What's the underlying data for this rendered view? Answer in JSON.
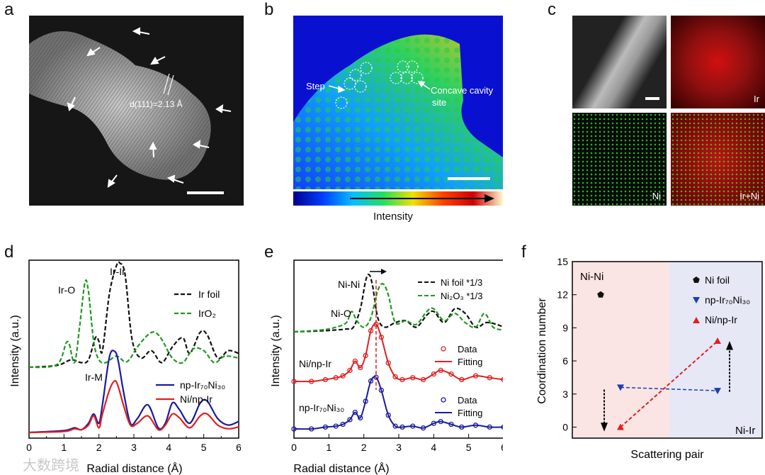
{
  "panel_letters": {
    "a": "a",
    "b": "b",
    "c": "c",
    "d": "d",
    "e": "e",
    "f": "f"
  },
  "panel_a": {
    "d_label": "d(111)=2.13 Å"
  },
  "panel_b": {
    "step_label": "Step",
    "cavity_label_1": "Concave cavity",
    "cavity_label_2": "site",
    "colorbar_label": "Intensity"
  },
  "panel_c": {
    "maps": [
      "",
      "Ir",
      "Ni",
      "Ir+Ni"
    ]
  },
  "watermark": {
    "text": "大数跨境"
  },
  "chart_data": [
    {
      "type": "line",
      "panel": "d",
      "xlabel": "Radial distance (Å)",
      "ylabel": "Intensity (a.u.)",
      "xlim": [
        0,
        6
      ],
      "xticks": [
        "0",
        "1",
        "2",
        "3",
        "4",
        "5",
        "6"
      ],
      "annotations": [
        "Ir-Ir",
        "Ir-O",
        "Ir-M"
      ],
      "legend_top": [
        "Ir foil",
        "IrO₂"
      ],
      "legend_bottom": [
        "np-Ir₇₀Ni₃₀",
        "Ni/np-Ir"
      ],
      "series": [
        {
          "name": "Ir foil",
          "style": "dashed",
          "color": "#111111",
          "x": [
            0,
            0.8,
            1.2,
            1.5,
            1.7,
            1.9,
            2.0,
            2.1,
            2.3,
            2.5,
            2.6,
            2.75,
            2.95,
            3.2,
            3.5,
            3.8,
            4.1,
            4.4,
            4.6,
            4.9,
            5.1,
            5.4,
            5.7,
            6
          ],
          "y": [
            0.0,
            0.02,
            0.08,
            0.05,
            0.08,
            0.32,
            0.28,
            0.18,
            0.8,
            1.1,
            1.13,
            1.0,
            0.3,
            0.1,
            0.18,
            0.05,
            0.22,
            0.32,
            0.15,
            0.38,
            0.35,
            0.1,
            0.18,
            0.15
          ]
        },
        {
          "name": "IrO₂",
          "style": "dashed",
          "color": "#1f9a1f",
          "x": [
            0,
            0.8,
            1.1,
            1.3,
            1.45,
            1.6,
            1.7,
            1.85,
            2.0,
            2.2,
            2.5,
            2.8,
            3.1,
            3.4,
            3.6,
            3.8,
            4.1,
            4.4,
            4.7,
            5.0,
            5.3,
            5.6,
            6
          ],
          "y": [
            0.0,
            0.03,
            0.28,
            0.05,
            0.45,
            0.92,
            0.82,
            0.28,
            0.08,
            0.05,
            0.12,
            0.06,
            0.22,
            0.35,
            0.38,
            0.3,
            0.1,
            0.05,
            0.2,
            0.18,
            0.05,
            0.12,
            0.1
          ]
        },
        {
          "name": "np-Ir70Ni30",
          "style": "solid",
          "color": "#1a1aa0",
          "x": [
            0,
            1.0,
            1.3,
            1.5,
            1.7,
            1.85,
            2.0,
            2.1,
            2.3,
            2.45,
            2.55,
            2.7,
            2.9,
            3.1,
            3.4,
            3.7,
            3.9,
            4.1,
            4.3,
            4.6,
            4.9,
            5.1,
            5.4,
            5.7,
            6
          ],
          "y": [
            0.0,
            0.02,
            0.05,
            0.03,
            0.1,
            0.2,
            0.1,
            0.3,
            0.82,
            0.88,
            0.78,
            0.45,
            0.1,
            0.15,
            0.3,
            0.05,
            0.1,
            0.32,
            0.25,
            0.1,
            0.32,
            0.34,
            0.15,
            0.08,
            0.12
          ]
        },
        {
          "name": "Ni/np-Ir",
          "style": "solid",
          "color": "#e02020",
          "x": [
            0,
            1.0,
            1.3,
            1.5,
            1.7,
            1.85,
            2.0,
            2.1,
            2.3,
            2.45,
            2.55,
            2.7,
            2.9,
            3.1,
            3.4,
            3.7,
            3.9,
            4.1,
            4.3,
            4.6,
            4.9,
            5.1,
            5.4,
            5.7,
            6
          ],
          "y": [
            0.0,
            0.01,
            0.04,
            0.03,
            0.08,
            0.18,
            0.05,
            0.2,
            0.46,
            0.56,
            0.5,
            0.3,
            0.08,
            0.1,
            0.18,
            0.03,
            0.08,
            0.2,
            0.16,
            0.05,
            0.18,
            0.2,
            0.08,
            0.04,
            0.06
          ]
        }
      ]
    },
    {
      "type": "line",
      "panel": "e",
      "xlabel": "Radial distance (Å)",
      "ylabel": "Intensity (a.u.)",
      "xlim": [
        0,
        6
      ],
      "xticks": [
        "0",
        "1",
        "2",
        "3",
        "4",
        "5",
        "6"
      ],
      "annotations": [
        "Ni-Ni",
        "Ni-O"
      ],
      "legend_top": [
        "Ni foil *1/3",
        "Ni₂O₃ *1/3"
      ],
      "legend_mid": [
        "Data",
        "Fitting"
      ],
      "legend_bot": [
        "Data",
        "Fitting"
      ],
      "labels": [
        "Ni/np-Ir",
        "np-Ir₇₀Ni₃₀"
      ],
      "series": [
        {
          "name": "Ni foil *1/3",
          "style": "dashed",
          "color": "#111111",
          "x": [
            0,
            0.8,
            1.2,
            1.5,
            1.7,
            1.9,
            2.05,
            2.15,
            2.25,
            2.4,
            2.6,
            2.9,
            3.2,
            3.5,
            3.8,
            4.0,
            4.3,
            4.6,
            4.9,
            5.2,
            5.5,
            5.8,
            6
          ],
          "y": [
            0.0,
            0.01,
            0.02,
            0.03,
            0.05,
            0.25,
            0.55,
            0.62,
            0.5,
            0.15,
            0.05,
            0.1,
            0.12,
            0.05,
            0.18,
            0.22,
            0.1,
            0.25,
            0.2,
            0.05,
            0.1,
            0.08,
            0.05
          ]
        },
        {
          "name": "Ni2O3 *1/3",
          "style": "dashed",
          "color": "#1f9a1f",
          "x": [
            0,
            0.8,
            1.2,
            1.5,
            1.65,
            1.8,
            2.0,
            2.2,
            2.4,
            2.55,
            2.7,
            2.9,
            3.2,
            3.5,
            3.8,
            4.0,
            4.3,
            4.6,
            4.9,
            5.2,
            5.45,
            5.7,
            6
          ],
          "y": [
            0.0,
            0.02,
            0.05,
            0.1,
            0.22,
            0.12,
            0.05,
            0.15,
            0.45,
            0.52,
            0.4,
            0.1,
            0.12,
            0.08,
            0.22,
            0.25,
            0.12,
            0.2,
            0.1,
            0.05,
            0.2,
            0.05,
            0.02
          ]
        },
        {
          "name": "Ni/np-Ir Data",
          "style": "circles",
          "color": "#e02020",
          "x": [
            0,
            0.5,
            0.9,
            1.2,
            1.4,
            1.6,
            1.75,
            1.9,
            2.05,
            2.2,
            2.35,
            2.5,
            2.7,
            2.9,
            3.1,
            3.4,
            3.7,
            4.0,
            4.2,
            4.5,
            4.8,
            5.2,
            5.6,
            6
          ],
          "y": [
            0.0,
            0.0,
            0.02,
            0.04,
            0.06,
            0.12,
            0.22,
            0.15,
            0.28,
            0.55,
            0.62,
            0.48,
            0.2,
            0.05,
            0.02,
            0.04,
            0.02,
            0.08,
            0.12,
            0.08,
            0.02,
            0.06,
            0.04,
            0.02
          ]
        },
        {
          "name": "np-Ir70Ni30 Data",
          "style": "circles",
          "color": "#1a1aa0",
          "x": [
            0,
            0.5,
            0.9,
            1.2,
            1.4,
            1.6,
            1.75,
            1.9,
            2.05,
            2.2,
            2.35,
            2.5,
            2.7,
            2.9,
            3.1,
            3.4,
            3.7,
            4.0,
            4.2,
            4.5,
            4.8,
            5.2,
            5.6,
            6
          ],
          "y": [
            0.0,
            0.0,
            0.02,
            0.03,
            0.05,
            0.1,
            0.18,
            0.12,
            0.3,
            0.52,
            0.56,
            0.42,
            0.15,
            0.03,
            0.02,
            0.03,
            0.01,
            0.06,
            0.08,
            0.05,
            0.02,
            0.04,
            0.02,
            0.02
          ]
        }
      ]
    },
    {
      "type": "scatter",
      "panel": "f",
      "xlabel": "Scattering pair",
      "ylabel": "Coordination number",
      "ylim": [
        -1,
        15
      ],
      "yticks": [
        "0",
        "3",
        "6",
        "9",
        "12",
        "15"
      ],
      "region_left": "Ni-Ni",
      "region_right": "Ni-Ir",
      "legend": [
        "Ni foil",
        "np-Ir₇₀Ni₃₀",
        "Ni/np-Ir"
      ],
      "series": [
        {
          "name": "Ni foil",
          "marker": "pentagon",
          "color": "#111111",
          "points": [
            {
              "pair": "Ni-Ni",
              "y": 12
            }
          ]
        },
        {
          "name": "np-Ir70Ni30",
          "marker": "triangle-down",
          "color": "#1a3fb0",
          "points": [
            {
              "pair": "Ni-Ni",
              "y": 3.6
            },
            {
              "pair": "Ni-Ir",
              "y": 3.3
            }
          ]
        },
        {
          "name": "Ni/np-Ir",
          "marker": "triangle-up",
          "color": "#e02020",
          "points": [
            {
              "pair": "Ni-Ni",
              "y": 0
            },
            {
              "pair": "Ni-Ir",
              "y": 7.8
            }
          ]
        }
      ]
    }
  ]
}
